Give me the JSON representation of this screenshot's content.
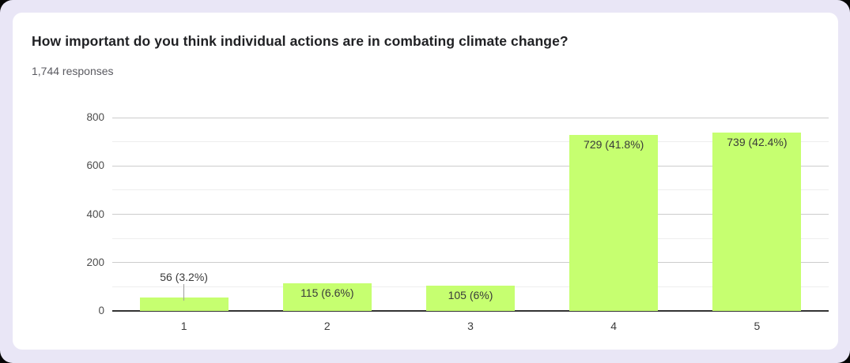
{
  "header": {
    "title": "How important do you think individual actions are in combating climate change?",
    "responses": "1,744 responses"
  },
  "colors": {
    "page_background": "#e9e6f6",
    "card_background": "#ffffff",
    "bar": "#c6ff70",
    "axis_line": "#333333",
    "major_gridline": "#cccccc",
    "minor_gridline": "#eeeeee",
    "annotation_text": "#3a3a3a",
    "connector_line": "#9e9e9e"
  },
  "chart_data": {
    "type": "bar",
    "title": "How important do you think individual actions are in combating climate change?",
    "subtitle": "1,744 responses",
    "categories": [
      "1",
      "2",
      "3",
      "4",
      "5"
    ],
    "values": [
      56,
      115,
      105,
      729,
      739
    ],
    "labels": [
      "56 (3.2%)",
      "115 (6.6%)",
      "105 (6%)",
      "729 (41.8%)",
      "739 (42.4%)"
    ],
    "percentages": [
      3.2,
      6.6,
      6,
      41.8,
      42.4
    ],
    "xlabel": "",
    "ylabel": "",
    "ylim": [
      0,
      800
    ],
    "yticks": [
      0,
      200,
      400,
      600,
      800
    ],
    "minor_gridline_step": 100,
    "grid": true,
    "legend": "none",
    "bar_color": "#c6ff70"
  }
}
